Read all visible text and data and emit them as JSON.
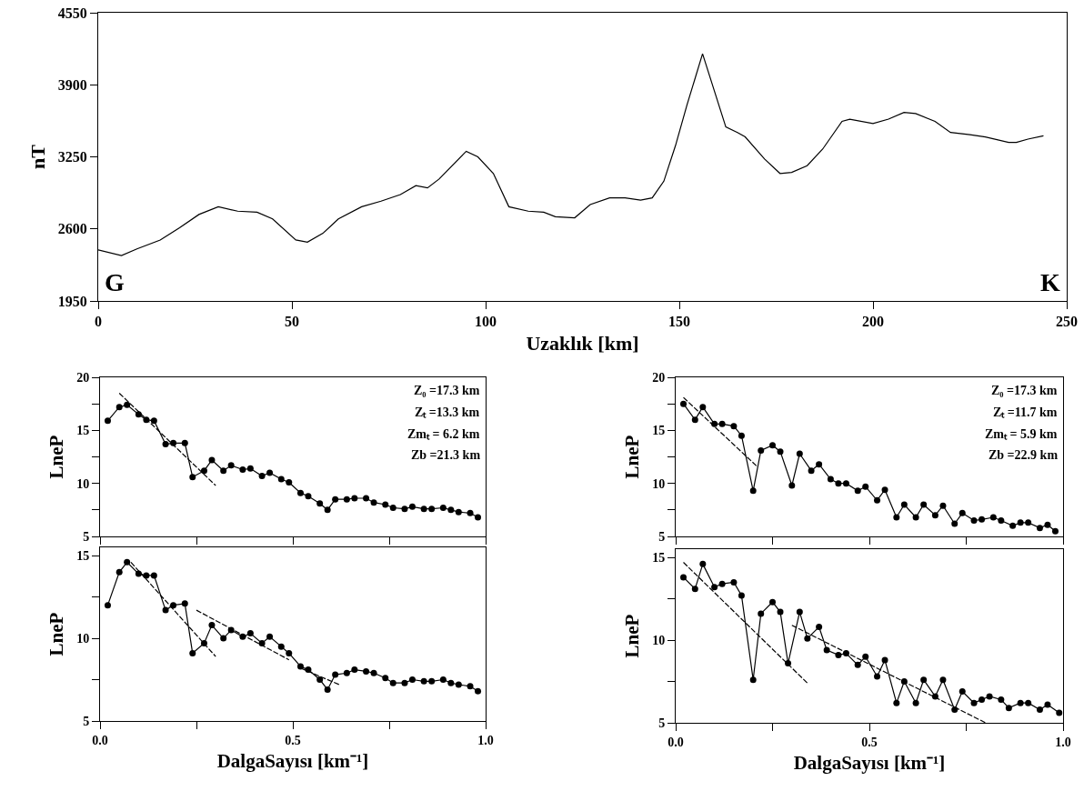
{
  "chart_data": [
    {
      "type": "line",
      "xlabel": "Uzaklık [km]",
      "ylabel": "nT",
      "xlim": [
        0,
        250
      ],
      "xticks": [
        0,
        50,
        100,
        150,
        200,
        250
      ],
      "ylim": [
        1950,
        4550
      ],
      "yticks": [
        1950,
        2600,
        3250,
        3900,
        4550
      ],
      "annotations": [
        "G",
        "K"
      ],
      "x": [
        0,
        6,
        10,
        16,
        21,
        26,
        31,
        36,
        41,
        45,
        51,
        54,
        58,
        62,
        68,
        73,
        78,
        82,
        85,
        88,
        95,
        98,
        102,
        106,
        111,
        115,
        118,
        123,
        127,
        132,
        136,
        140,
        143,
        146,
        149,
        152,
        156,
        159,
        162,
        165,
        167,
        172,
        176,
        179,
        183,
        187,
        192,
        194,
        200,
        204,
        208,
        211,
        216,
        220,
        225,
        229,
        235,
        237,
        240,
        244
      ],
      "series": [
        {
          "color": "#000000",
          "marker": "none",
          "line_style": "solid",
          "values": [
            2410,
            2360,
            2420,
            2500,
            2610,
            2730,
            2800,
            2760,
            2750,
            2690,
            2500,
            2480,
            2560,
            2690,
            2800,
            2850,
            2910,
            2990,
            2970,
            3050,
            3300,
            3250,
            3100,
            2800,
            2760,
            2750,
            2710,
            2700,
            2820,
            2880,
            2880,
            2860,
            2880,
            3030,
            3350,
            3720,
            4180,
            3850,
            3520,
            3470,
            3430,
            3230,
            3100,
            3110,
            3170,
            3320,
            3570,
            3590,
            3550,
            3590,
            3650,
            3640,
            3570,
            3470,
            3450,
            3430,
            3380,
            3380,
            3410,
            3440
          ]
        }
      ]
    },
    {
      "type": "line",
      "ylabel": "LneP",
      "xlim": [
        0,
        1
      ],
      "xticks": [
        {
          "value": 0,
          "label": null
        },
        {
          "value": 0.25,
          "label": null
        },
        {
          "value": 0.5,
          "label": null
        },
        {
          "value": 0.75,
          "label": null
        },
        {
          "value": 1,
          "label": null
        }
      ],
      "ylim": [
        5,
        20
      ],
      "yticks": [
        5,
        {
          "value": 7.5,
          "label": null
        },
        10,
        {
          "value": 12.5,
          "label": null
        },
        15,
        {
          "value": 17.5,
          "label": null
        },
        20
      ],
      "tick_labels": "y",
      "annotations": [
        "Z₀ =17.3 km",
        "Zₜ =13.3 km",
        "Zmₜ = 6.2 km",
        "Zb =21.3 km"
      ],
      "series": [
        {
          "color": "#000000",
          "marker": "circle",
          "line_style": "solid",
          "x": [
            0.02,
            0.05,
            0.07,
            0.1,
            0.12,
            0.14,
            0.17,
            0.19,
            0.22,
            0.24,
            0.27,
            0.29,
            0.32,
            0.34,
            0.37,
            0.39,
            0.42,
            0.44,
            0.47,
            0.49,
            0.52,
            0.54,
            0.57,
            0.59,
            0.61,
            0.64,
            0.66,
            0.69,
            0.71,
            0.74,
            0.76,
            0.79,
            0.81,
            0.84,
            0.86,
            0.89,
            0.91,
            0.93,
            0.96,
            0.98
          ],
          "values": [
            15.9,
            17.2,
            17.4,
            16.5,
            16.0,
            15.9,
            13.7,
            13.8,
            13.8,
            10.6,
            11.2,
            12.2,
            11.2,
            11.7,
            11.3,
            11.4,
            10.7,
            11.0,
            10.4,
            10.1,
            9.1,
            8.8,
            8.1,
            7.5,
            8.5,
            8.5,
            8.6,
            8.6,
            8.2,
            8.0,
            7.7,
            7.6,
            7.8,
            7.6,
            7.6,
            7.7,
            7.5,
            7.3,
            7.2,
            6.8
          ]
        },
        {
          "color": "#000000",
          "marker": "none",
          "line_style": "dashed",
          "x": [
            0.05,
            0.3
          ],
          "values": [
            18.5,
            9.8
          ]
        }
      ]
    },
    {
      "type": "line",
      "xlabel": "DalgaSayısı [km⁻¹]",
      "ylabel": "LneP",
      "xlim": [
        0,
        1
      ],
      "xticks": [
        {
          "value": 0,
          "label": "0.0"
        },
        {
          "value": 0.25,
          "label": null
        },
        {
          "value": 0.5,
          "label": "0.5"
        },
        {
          "value": 0.75,
          "label": null
        },
        {
          "value": 1,
          "label": "1.0"
        }
      ],
      "ylim": [
        5,
        15.5
      ],
      "yticks": [
        5,
        {
          "value": 7.5,
          "label": null
        },
        10,
        {
          "value": 12.5,
          "label": null
        },
        15
      ],
      "series": [
        {
          "color": "#000000",
          "marker": "circle",
          "line_style": "solid",
          "x": [
            0.02,
            0.05,
            0.07,
            0.1,
            0.12,
            0.14,
            0.17,
            0.19,
            0.22,
            0.24,
            0.27,
            0.29,
            0.32,
            0.34,
            0.37,
            0.39,
            0.42,
            0.44,
            0.47,
            0.49,
            0.52,
            0.54,
            0.57,
            0.59,
            0.61,
            0.64,
            0.66,
            0.69,
            0.71,
            0.74,
            0.76,
            0.79,
            0.81,
            0.84,
            0.86,
            0.89,
            0.91,
            0.93,
            0.96,
            0.98
          ],
          "values": [
            12.0,
            14.0,
            14.6,
            13.9,
            13.8,
            13.8,
            11.7,
            12.0,
            12.1,
            9.1,
            9.7,
            10.8,
            10.0,
            10.5,
            10.1,
            10.3,
            9.7,
            10.1,
            9.5,
            9.1,
            8.3,
            8.1,
            7.5,
            6.9,
            7.8,
            7.9,
            8.1,
            8.0,
            7.9,
            7.6,
            7.3,
            7.3,
            7.5,
            7.4,
            7.4,
            7.5,
            7.3,
            7.2,
            7.1,
            6.8
          ]
        },
        {
          "color": "#000000",
          "marker": "none",
          "line_style": "dashed",
          "x": [
            0.08,
            0.3
          ],
          "values": [
            14.6,
            8.9
          ]
        },
        {
          "color": "#000000",
          "marker": "none",
          "line_style": "dashed",
          "x": [
            0.25,
            0.49
          ],
          "values": [
            11.7,
            8.7
          ]
        },
        {
          "color": "#000000",
          "marker": "none",
          "line_style": "dashed",
          "x": [
            0.52,
            0.62
          ],
          "values": [
            8.2,
            7.2
          ]
        }
      ]
    },
    {
      "type": "line",
      "ylabel": "LneP",
      "xlim": [
        0,
        1
      ],
      "xticks": [
        {
          "value": 0,
          "label": null
        },
        {
          "value": 0.25,
          "label": null
        },
        {
          "value": 0.5,
          "label": null
        },
        {
          "value": 0.75,
          "label": null
        },
        {
          "value": 1,
          "label": null
        }
      ],
      "ylim": [
        5,
        20
      ],
      "yticks": [
        5,
        {
          "value": 7.5,
          "label": null
        },
        10,
        {
          "value": 12.5,
          "label": null
        },
        15,
        {
          "value": 17.5,
          "label": null
        },
        20
      ],
      "tick_labels": "y",
      "annotations": [
        "Z₀ =17.3 km",
        "Zₜ =11.7 km",
        "Zmₜ = 5.9 km",
        "Zb =22.9 km"
      ],
      "series": [
        {
          "color": "#000000",
          "marker": "circle",
          "line_style": "solid",
          "x": [
            0.02,
            0.05,
            0.07,
            0.1,
            0.12,
            0.15,
            0.17,
            0.2,
            0.22,
            0.25,
            0.27,
            0.3,
            0.32,
            0.35,
            0.37,
            0.4,
            0.42,
            0.44,
            0.47,
            0.49,
            0.52,
            0.54,
            0.57,
            0.59,
            0.62,
            0.64,
            0.67,
            0.69,
            0.72,
            0.74,
            0.77,
            0.79,
            0.82,
            0.84,
            0.87,
            0.89,
            0.91,
            0.94,
            0.96,
            0.98
          ],
          "values": [
            17.5,
            16.0,
            17.2,
            15.6,
            15.6,
            15.4,
            14.5,
            9.3,
            13.1,
            13.6,
            13.0,
            9.8,
            12.8,
            11.2,
            11.8,
            10.4,
            10.0,
            10.0,
            9.3,
            9.7,
            8.4,
            9.4,
            6.8,
            8.0,
            6.8,
            8.0,
            7.0,
            7.9,
            6.2,
            7.2,
            6.5,
            6.6,
            6.8,
            6.5,
            6.0,
            6.3,
            6.3,
            5.8,
            6.1,
            5.5
          ]
        },
        {
          "color": "#000000",
          "marker": "none",
          "line_style": "dashed",
          "x": [
            0.02,
            0.21
          ],
          "values": [
            18.1,
            11.6
          ]
        }
      ]
    },
    {
      "type": "line",
      "xlabel": "DalgaSayısı [km⁻¹]",
      "ylabel": "LneP",
      "xlim": [
        0,
        1
      ],
      "xticks": [
        {
          "value": 0,
          "label": "0.0"
        },
        {
          "value": 0.25,
          "label": null
        },
        {
          "value": 0.5,
          "label": "0.5"
        },
        {
          "value": 0.75,
          "label": null
        },
        {
          "value": 1,
          "label": "1.0"
        }
      ],
      "ylim": [
        5,
        15.5
      ],
      "yticks": [
        5,
        {
          "value": 7.5,
          "label": null
        },
        10,
        {
          "value": 12.5,
          "label": null
        },
        15
      ],
      "series": [
        {
          "color": "#000000",
          "marker": "circle",
          "line_style": "solid",
          "x": [
            0.02,
            0.05,
            0.07,
            0.1,
            0.12,
            0.15,
            0.17,
            0.2,
            0.22,
            0.25,
            0.27,
            0.29,
            0.32,
            0.34,
            0.37,
            0.39,
            0.42,
            0.44,
            0.47,
            0.49,
            0.52,
            0.54,
            0.57,
            0.59,
            0.62,
            0.64,
            0.67,
            0.69,
            0.72,
            0.74,
            0.77,
            0.79,
            0.81,
            0.84,
            0.86,
            0.89,
            0.91,
            0.94,
            0.96,
            0.99
          ],
          "values": [
            13.8,
            13.1,
            14.6,
            13.2,
            13.4,
            13.5,
            12.7,
            7.6,
            11.6,
            12.3,
            11.7,
            8.6,
            11.7,
            10.1,
            10.8,
            9.4,
            9.1,
            9.2,
            8.5,
            9.0,
            7.8,
            8.8,
            6.2,
            7.5,
            6.2,
            7.6,
            6.6,
            7.6,
            5.8,
            6.9,
            6.2,
            6.4,
            6.6,
            6.4,
            5.9,
            6.2,
            6.2,
            5.8,
            6.1,
            5.6
          ]
        },
        {
          "color": "#000000",
          "marker": "none",
          "line_style": "dashed",
          "x": [
            0.02,
            0.34
          ],
          "values": [
            14.7,
            7.4
          ]
        },
        {
          "color": "#000000",
          "marker": "none",
          "line_style": "dashed",
          "x": [
            0.3,
            0.8
          ],
          "values": [
            10.9,
            5.0
          ]
        }
      ]
    }
  ]
}
